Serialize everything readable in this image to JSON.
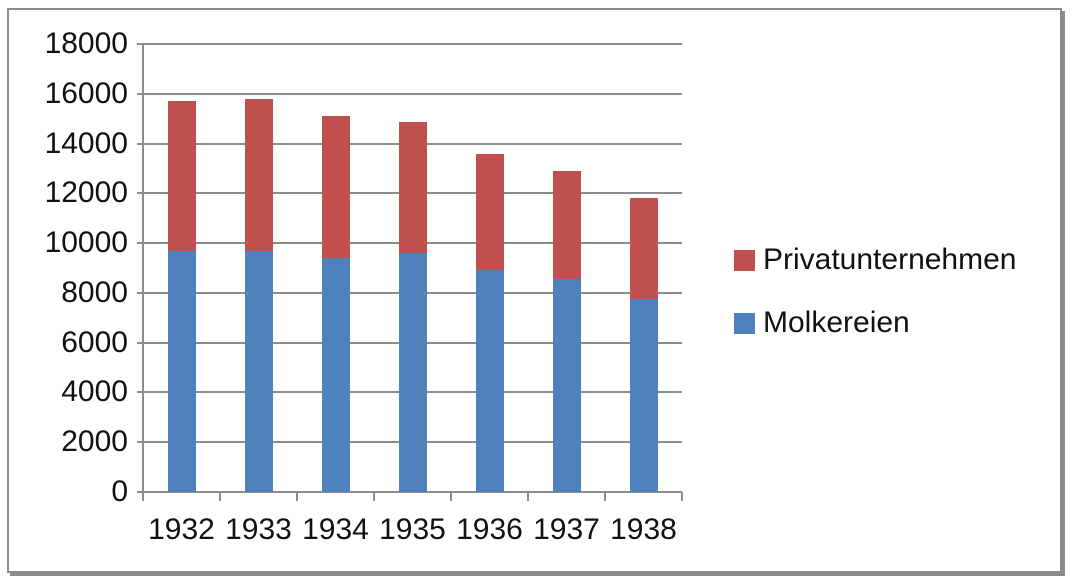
{
  "chart_data": {
    "type": "bar",
    "stacked": true,
    "title": "",
    "xlabel": "",
    "ylabel": "",
    "categories": [
      "1932",
      "1933",
      "1934",
      "1935",
      "1936",
      "1937",
      "1938"
    ],
    "series": [
      {
        "name": "Molkereien",
        "color": "#4F81BD",
        "values": [
          9700,
          9700,
          9400,
          9600,
          8900,
          8550,
          7750
        ]
      },
      {
        "name": "Privatunternehmen",
        "color": "#C0504D",
        "values": [
          6000,
          6100,
          5700,
          5250,
          4700,
          4350,
          4050
        ]
      }
    ],
    "totals": [
      15700,
      15800,
      15100,
      14850,
      13600,
      12900,
      11800
    ],
    "ylim": [
      0,
      18000
    ],
    "ytick_step": 2000,
    "yticks": [
      0,
      2000,
      4000,
      6000,
      8000,
      10000,
      12000,
      14000,
      16000,
      18000
    ],
    "grid": "horizontal",
    "legend_position": "right",
    "legend_order_top_to_bottom": [
      "Privatunternehmen",
      "Molkereien"
    ],
    "line_color": "#8c8c8c",
    "text_color": "#111111",
    "background_color": "#ffffff"
  }
}
